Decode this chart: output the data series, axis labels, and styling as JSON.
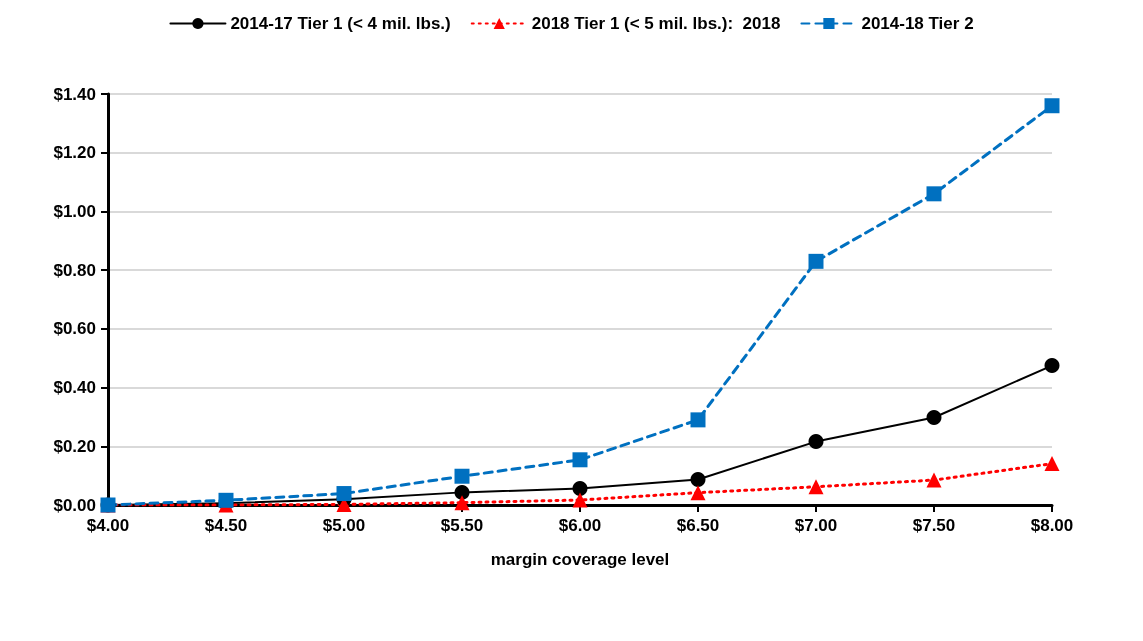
{
  "chart_data": {
    "type": "line",
    "xlabel": "margin coverage level",
    "x": [
      4.0,
      4.5,
      5.0,
      5.5,
      6.0,
      6.5,
      7.0,
      7.5,
      8.0
    ],
    "series": [
      {
        "name": "2014-17 Tier 1 (< 4 mil. lbs.)",
        "color": "#000000",
        "marker": "circle",
        "line_style": "solid",
        "values": [
          0,
          0.006,
          0.02,
          0.043,
          0.056,
          0.087,
          0.216,
          0.298,
          0.475
        ]
      },
      {
        "name": "2018 Tier 1 (< 5 mil. lbs.):  2018",
        "color": "#ff0000",
        "marker": "triangle",
        "line_style": "dotted",
        "values": [
          0,
          0,
          0.002,
          0.008,
          0.017,
          0.042,
          0.062,
          0.085,
          0.141
        ]
      },
      {
        "name": "2014-18 Tier 2",
        "color": "#0070c0",
        "marker": "square",
        "line_style": "dashed",
        "values": [
          0,
          0.016,
          0.039,
          0.098,
          0.154,
          0.29,
          0.83,
          1.06,
          1.36
        ]
      }
    ],
    "xlim": [
      4.0,
      8.0
    ],
    "xticks": [
      {
        "value": 4.0,
        "label": "$4.00"
      },
      {
        "value": 4.5,
        "label": "$4.50"
      },
      {
        "value": 5.0,
        "label": "$5.00"
      },
      {
        "value": 5.5,
        "label": "$5.50"
      },
      {
        "value": 6.0,
        "label": "$6.00"
      },
      {
        "value": 6.5,
        "label": "$6.50"
      },
      {
        "value": 7.0,
        "label": "$7.00"
      },
      {
        "value": 7.5,
        "label": "$7.50"
      },
      {
        "value": 8.0,
        "label": "$8.00"
      }
    ],
    "ylim": [
      0,
      1.4
    ],
    "yticks": [
      {
        "value": 0,
        "label": "$0.00"
      },
      {
        "value": 0.2,
        "label": "$0.20"
      },
      {
        "value": 0.4,
        "label": "$0.40"
      },
      {
        "value": 0.6,
        "label": "$0.60"
      },
      {
        "value": 0.8,
        "label": "$0.80"
      },
      {
        "value": 1.0,
        "label": "$1.00"
      },
      {
        "value": 1.2,
        "label": "$1.20"
      },
      {
        "value": 1.4,
        "label": "$1.40"
      }
    ],
    "grid": "y",
    "legend": "top"
  }
}
